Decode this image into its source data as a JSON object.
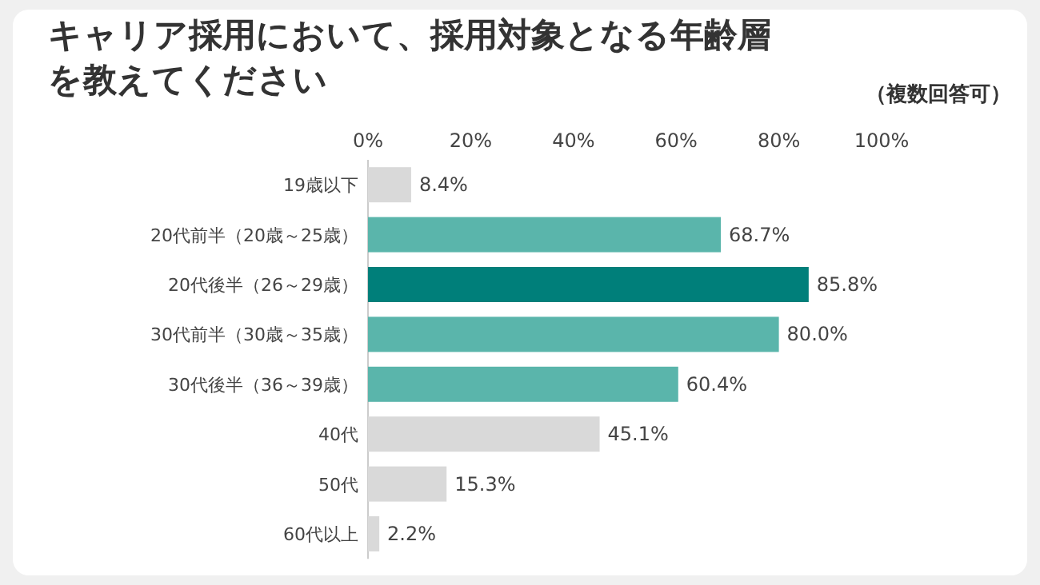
{
  "chart_data": {
    "type": "bar",
    "orientation": "horizontal",
    "title": "キャリア採用において、採用対象となる年齢層を教えてください",
    "annotations": [
      "（複数回答可）"
    ],
    "categories": [
      "19歳以下",
      "20代前半（20歳～25歳）",
      "20代後半（26～29歳）",
      "30代前半（30歳～35歳）",
      "30代後半（36～39歳）",
      "40代",
      "50代",
      "60代以上"
    ],
    "values": [
      8.4,
      68.7,
      85.8,
      80.0,
      60.4,
      45.1,
      15.3,
      2.2
    ],
    "colors": [
      "#d9d9d9",
      "#5ab5ab",
      "#007f7a",
      "#5ab5ab",
      "#5ab5ab",
      "#d9d9d9",
      "#d9d9d9",
      "#d9d9d9"
    ],
    "value_labels": [
      "8.4%",
      "68.7%",
      "85.8%",
      "80.0%",
      "60.4%",
      "45.1%",
      "15.3%",
      "2.2%"
    ],
    "xlim": [
      0,
      100
    ],
    "xticks": [
      {
        "value": 0,
        "label": "0%"
      },
      {
        "value": 20,
        "label": "20%"
      },
      {
        "value": 40,
        "label": "40%"
      },
      {
        "value": 60,
        "label": "60%"
      },
      {
        "value": 80,
        "label": "80%"
      },
      {
        "value": 100,
        "label": "100%"
      }
    ],
    "grid": false
  }
}
